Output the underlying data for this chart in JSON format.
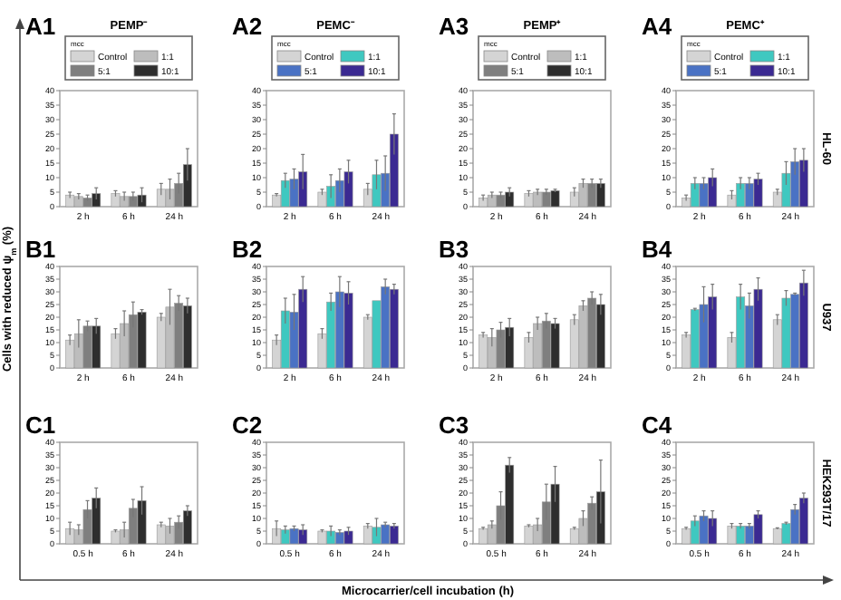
{
  "chart_data": [
    {
      "type": "bar",
      "title": "A1",
      "subtitle": "PEMP⁻",
      "legend": "top",
      "legend_title": "mcc",
      "categories": [
        "2 h",
        "6 h",
        "24 h"
      ],
      "ylim": [
        0,
        40
      ],
      "yticks": [
        0,
        5,
        10,
        15,
        20,
        25,
        30,
        35,
        40
      ],
      "series": [
        {
          "name": "Control",
          "color": "#d4d4d4",
          "values": [
            4,
            4.5,
            6
          ],
          "errors": [
            1,
            1,
            2
          ]
        },
        {
          "name": "1:1",
          "color": "#bdbdbd",
          "values": [
            3.5,
            3.5,
            6
          ],
          "errors": [
            1,
            1.5,
            3.5
          ]
        },
        {
          "name": "5:1",
          "color": "#7f7f7f",
          "values": [
            3,
            3.5,
            8
          ],
          "errors": [
            1,
            1.5,
            3.5
          ]
        },
        {
          "name": "10:1",
          "color": "#2e2e2e",
          "values": [
            4.5,
            4,
            14.5
          ],
          "errors": [
            2,
            2.5,
            5.5
          ]
        }
      ]
    },
    {
      "type": "bar",
      "title": "A2",
      "subtitle": "PEMC⁻",
      "legend": "top",
      "legend_title": "mcc",
      "categories": [
        "2 h",
        "6 h",
        "24 h"
      ],
      "ylim": [
        0,
        40
      ],
      "yticks": [
        0,
        5,
        10,
        15,
        20,
        25,
        30,
        35,
        40
      ],
      "series": [
        {
          "name": "Control",
          "color": "#d4d4d4",
          "values": [
            4,
            5,
            6
          ],
          "errors": [
            0.5,
            1,
            2
          ]
        },
        {
          "name": "1:1",
          "color": "#3fc8c0",
          "values": [
            9,
            7,
            11
          ],
          "errors": [
            2.5,
            4,
            5
          ]
        },
        {
          "name": "5:1",
          "color": "#4a72c4",
          "values": [
            9.5,
            9,
            11.5
          ],
          "errors": [
            3.5,
            4,
            6
          ]
        },
        {
          "name": "10:1",
          "color": "#3b2a92",
          "values": [
            12,
            12,
            25
          ],
          "errors": [
            6,
            4,
            7
          ]
        }
      ]
    },
    {
      "type": "bar",
      "title": "A3",
      "subtitle": "PEMP⁺",
      "legend": "top",
      "legend_title": "mcc",
      "categories": [
        "2 h",
        "6 h",
        "24 h"
      ],
      "ylim": [
        0,
        40
      ],
      "yticks": [
        0,
        5,
        10,
        15,
        20,
        25,
        30,
        35,
        40
      ],
      "series": [
        {
          "name": "Control",
          "color": "#d4d4d4",
          "values": [
            3,
            4.5,
            5
          ],
          "errors": [
            1,
            1,
            1.5
          ]
        },
        {
          "name": "1:1",
          "color": "#bdbdbd",
          "values": [
            4,
            5,
            8
          ],
          "errors": [
            1,
            1,
            1.5
          ]
        },
        {
          "name": "5:1",
          "color": "#7f7f7f",
          "values": [
            4,
            5,
            8
          ],
          "errors": [
            1,
            1,
            1.5
          ]
        },
        {
          "name": "10:1",
          "color": "#2e2e2e",
          "values": [
            5,
            5.5,
            8
          ],
          "errors": [
            1.5,
            0.5,
            1.5
          ]
        }
      ]
    },
    {
      "type": "bar",
      "title": "A4",
      "subtitle": "PEMC⁺",
      "legend": "top",
      "legend_title": "mcc",
      "y2label": "HL-60",
      "categories": [
        "2 h",
        "6 h",
        "24 h"
      ],
      "ylim": [
        0,
        40
      ],
      "yticks": [
        0,
        5,
        10,
        15,
        20,
        25,
        30,
        35,
        40
      ],
      "series": [
        {
          "name": "Control",
          "color": "#d4d4d4",
          "values": [
            3,
            4,
            5
          ],
          "errors": [
            1,
            1.5,
            1
          ]
        },
        {
          "name": "1:1",
          "color": "#3fc8c0",
          "values": [
            8,
            8,
            11.5
          ],
          "errors": [
            2,
            2,
            4
          ]
        },
        {
          "name": "5:1",
          "color": "#4a72c4",
          "values": [
            8,
            8,
            15.5
          ],
          "errors": [
            2,
            2,
            4.5
          ]
        },
        {
          "name": "10:1",
          "color": "#3b2a92",
          "values": [
            10,
            9.5,
            16
          ],
          "errors": [
            3,
            2,
            4
          ]
        }
      ]
    },
    {
      "type": "bar",
      "title": "B1",
      "ylabel": "Cells with reduced ψ$_{m}$ (%)",
      "categories": [
        "2 h",
        "6 h",
        "24 h"
      ],
      "ylim": [
        0,
        40
      ],
      "yticks": [
        0,
        5,
        10,
        15,
        20,
        25,
        30,
        35,
        40
      ],
      "series": [
        {
          "color": "#d4d4d4",
          "values": [
            11,
            13.5,
            20
          ],
          "errors": [
            2,
            2,
            1.5
          ]
        },
        {
          "color": "#bdbdbd",
          "values": [
            13.5,
            17.5,
            24
          ],
          "errors": [
            5.5,
            5,
            7
          ]
        },
        {
          "color": "#7f7f7f",
          "values": [
            16.5,
            21,
            25.5
          ],
          "errors": [
            2,
            5,
            3
          ]
        },
        {
          "color": "#2e2e2e",
          "values": [
            16.5,
            22,
            24.5
          ],
          "errors": [
            3,
            1,
            3
          ]
        }
      ]
    },
    {
      "type": "bar",
      "title": "B2",
      "categories": [
        "2 h",
        "6 h",
        "24 h"
      ],
      "ylim": [
        0,
        40
      ],
      "yticks": [
        0,
        5,
        10,
        15,
        20,
        25,
        30,
        35,
        40
      ],
      "series": [
        {
          "color": "#d4d4d4",
          "values": [
            11,
            13.5,
            20
          ],
          "errors": [
            2,
            2,
            1
          ]
        },
        {
          "color": "#3fc8c0",
          "values": [
            22.5,
            26,
            26.5
          ],
          "errors": [
            5,
            3.5,
            null
          ]
        },
        {
          "color": "#4a72c4",
          "values": [
            22,
            30,
            32
          ],
          "errors": [
            7,
            6,
            3
          ]
        },
        {
          "color": "#3b2a92",
          "values": [
            31,
            29.5,
            31
          ],
          "errors": [
            5,
            4.5,
            2
          ]
        }
      ]
    },
    {
      "type": "bar",
      "title": "B3",
      "categories": [
        "2 h",
        "6 h",
        "24 h"
      ],
      "ylim": [
        0,
        40
      ],
      "yticks": [
        0,
        5,
        10,
        15,
        20,
        25,
        30,
        35,
        40
      ],
      "series": [
        {
          "color": "#d4d4d4",
          "values": [
            13,
            12,
            19
          ],
          "errors": [
            1,
            2,
            2
          ]
        },
        {
          "color": "#bdbdbd",
          "values": [
            12,
            17.5,
            24.5
          ],
          "errors": [
            3.5,
            2.5,
            2
          ]
        },
        {
          "color": "#7f7f7f",
          "values": [
            15,
            18.5,
            27.5
          ],
          "errors": [
            3,
            3,
            2.5
          ]
        },
        {
          "color": "#2e2e2e",
          "values": [
            16,
            17.5,
            25
          ],
          "errors": [
            3.5,
            2,
            4
          ]
        }
      ]
    },
    {
      "type": "bar",
      "title": "B4",
      "y2label": "U937",
      "categories": [
        "2 h",
        "6 h",
        "24 h"
      ],
      "ylim": [
        0,
        40
      ],
      "yticks": [
        0,
        5,
        10,
        15,
        20,
        25,
        30,
        35,
        40
      ],
      "series": [
        {
          "color": "#d4d4d4",
          "values": [
            13,
            12,
            19
          ],
          "errors": [
            1,
            2,
            2
          ]
        },
        {
          "color": "#3fc8c0",
          "values": [
            23,
            28,
            27.5
          ],
          "errors": [
            0.5,
            5,
            3
          ]
        },
        {
          "color": "#4a72c4",
          "values": [
            25,
            24.5,
            29
          ],
          "errors": [
            7,
            5,
            0.5
          ]
        },
        {
          "color": "#3b2a92",
          "values": [
            28,
            31,
            33.5
          ],
          "errors": [
            5,
            4.5,
            5
          ]
        }
      ]
    },
    {
      "type": "bar",
      "title": "C1",
      "categories": [
        "0.5 h",
        "6 h",
        "24 h"
      ],
      "ylim": [
        0,
        40
      ],
      "yticks": [
        0,
        5,
        10,
        15,
        20,
        25,
        30,
        35,
        40
      ],
      "series": [
        {
          "color": "#d4d4d4",
          "values": [
            6,
            5,
            7.5
          ],
          "errors": [
            2.5,
            0.5,
            1
          ]
        },
        {
          "color": "#bdbdbd",
          "values": [
            5.5,
            5.5,
            7
          ],
          "errors": [
            2,
            3,
            3
          ]
        },
        {
          "color": "#7f7f7f",
          "values": [
            13.5,
            14,
            8.5
          ],
          "errors": [
            3.5,
            3.5,
            2.5
          ]
        },
        {
          "color": "#2e2e2e",
          "values": [
            18,
            17,
            13
          ],
          "errors": [
            4,
            5.5,
            2
          ]
        }
      ]
    },
    {
      "type": "bar",
      "title": "C2",
      "xlabel": "Microcarrier/cell incubation (h)",
      "categories": [
        "0.5 h",
        "6 h",
        "24 h"
      ],
      "ylim": [
        0,
        40
      ],
      "yticks": [
        0,
        5,
        10,
        15,
        20,
        25,
        30,
        35,
        40
      ],
      "series": [
        {
          "color": "#d4d4d4",
          "values": [
            6,
            5,
            7
          ],
          "errors": [
            3,
            0.5,
            1
          ]
        },
        {
          "color": "#3fc8c0",
          "values": [
            5.5,
            5,
            6.5
          ],
          "errors": [
            1.5,
            2,
            3.5
          ]
        },
        {
          "color": "#4a72c4",
          "values": [
            6,
            4.5,
            7.5
          ],
          "errors": [
            1,
            1,
            1
          ]
        },
        {
          "color": "#3b2a92",
          "values": [
            5.5,
            5,
            7
          ],
          "errors": [
            2,
            1.5,
            1
          ]
        }
      ]
    },
    {
      "type": "bar",
      "title": "C3",
      "categories": [
        "0.5 h",
        "6 h",
        "24 h"
      ],
      "ylim": [
        0,
        40
      ],
      "yticks": [
        0,
        5,
        10,
        15,
        20,
        25,
        30,
        35,
        40
      ],
      "series": [
        {
          "color": "#d4d4d4",
          "values": [
            6,
            7,
            6
          ],
          "errors": [
            0.5,
            0.5,
            0.5
          ]
        },
        {
          "color": "#bdbdbd",
          "values": [
            7.5,
            7.5,
            10
          ],
          "errors": [
            1.5,
            2.5,
            3
          ]
        },
        {
          "color": "#7f7f7f",
          "values": [
            15,
            16.5,
            16
          ],
          "errors": [
            5.5,
            7,
            2.5
          ]
        },
        {
          "color": "#2e2e2e",
          "values": [
            31,
            23.5,
            20.5
          ],
          "errors": [
            3,
            7,
            12.5
          ]
        }
      ]
    },
    {
      "type": "bar",
      "title": "C4",
      "y2label": "HEK293T/17",
      "categories": [
        "0.5 h",
        "6 h",
        "24 h"
      ],
      "ylim": [
        0,
        40
      ],
      "yticks": [
        0,
        5,
        10,
        15,
        20,
        25,
        30,
        35,
        40
      ],
      "series": [
        {
          "color": "#d4d4d4",
          "values": [
            6,
            7,
            6
          ],
          "errors": [
            0.5,
            1,
            0.3
          ]
        },
        {
          "color": "#3fc8c0",
          "values": [
            9,
            7,
            8
          ],
          "errors": [
            2,
            1,
            0.5
          ]
        },
        {
          "color": "#4a72c4",
          "values": [
            11,
            7,
            13.5
          ],
          "errors": [
            2,
            1,
            2
          ]
        },
        {
          "color": "#3b2a92",
          "values": [
            10,
            11.5,
            18
          ],
          "errors": [
            3,
            1.5,
            2
          ]
        }
      ]
    }
  ]
}
